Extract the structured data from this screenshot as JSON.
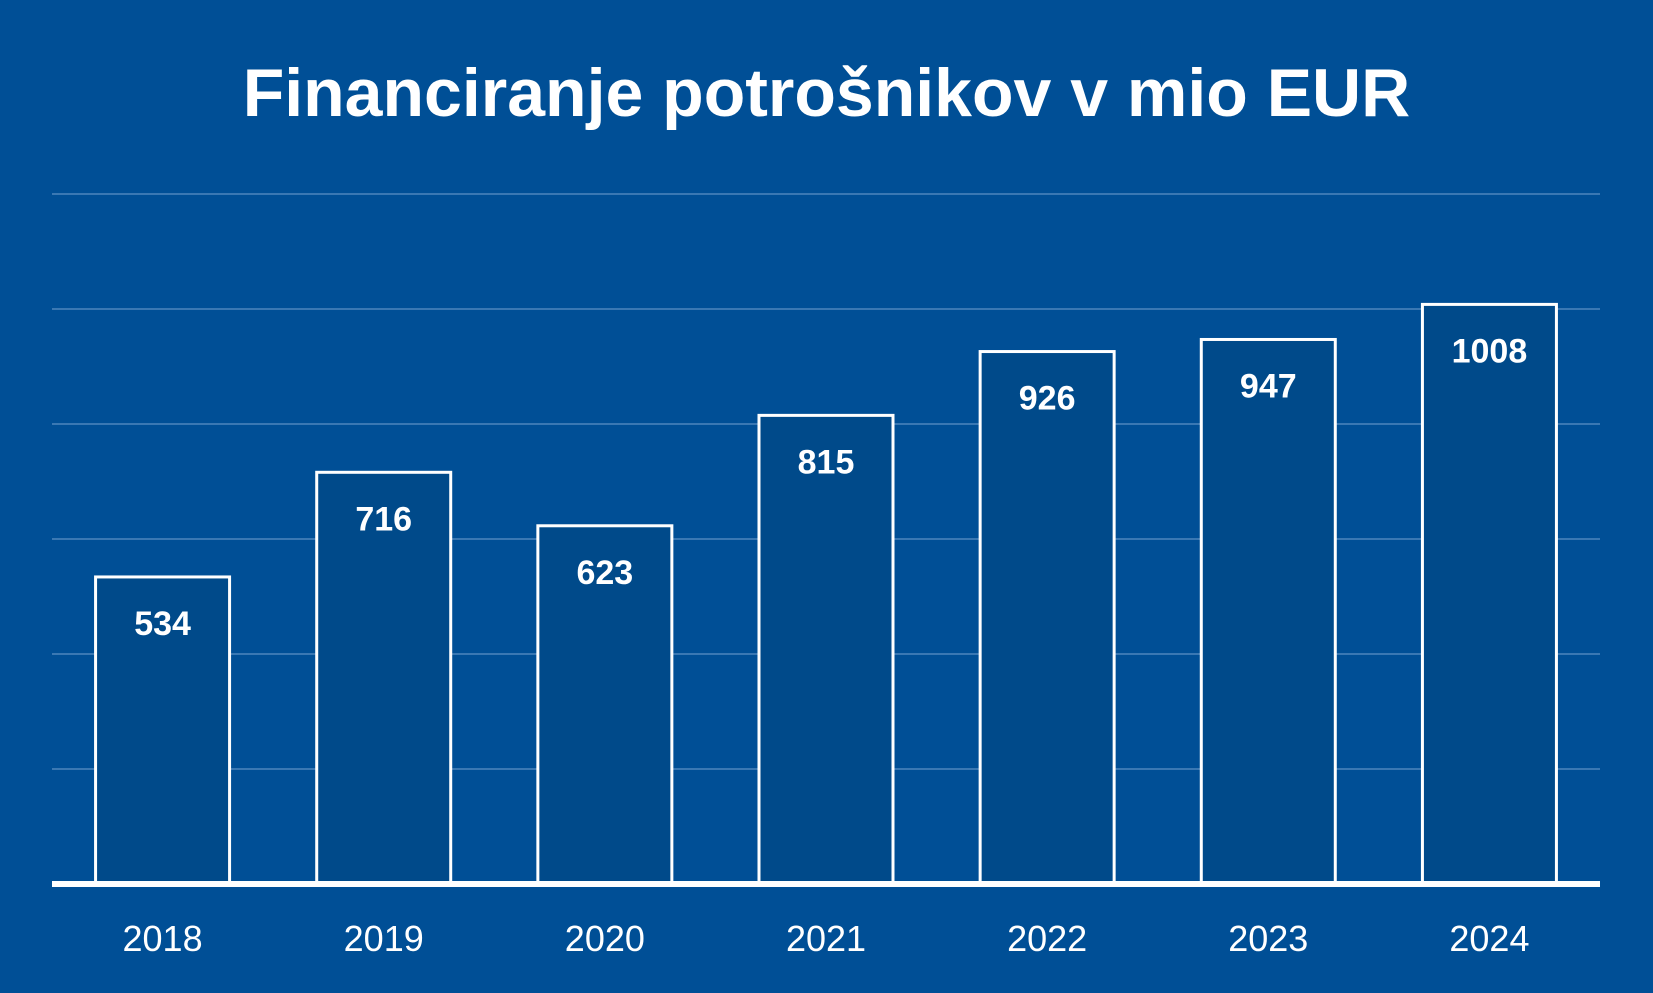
{
  "chart_data": {
    "type": "bar",
    "title": "Financiranje potrošnikov v mio EUR",
    "categories": [
      "2018",
      "2019",
      "2020",
      "2021",
      "2022",
      "2023",
      "2024"
    ],
    "values": [
      534,
      716,
      623,
      815,
      926,
      947,
      1008
    ],
    "ylim": [
      0,
      1200
    ],
    "grid": true,
    "data_labels": "inside-top",
    "colors": {
      "background": "#004f96",
      "bar_fill": "#004a8a",
      "bar_outline": "#ffffff",
      "gridline": "#3a78b3",
      "text": "#ffffff"
    }
  }
}
